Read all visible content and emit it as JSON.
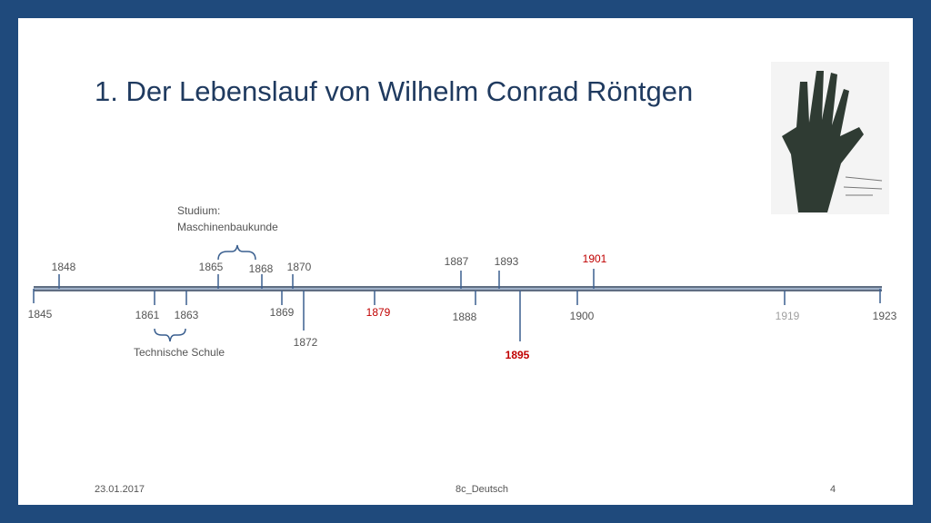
{
  "title": "1. Der Lebenslauf von Wilhelm Conrad Röntgen",
  "events": [
    "1845",
    "1848",
    "1861",
    "1863",
    "1865",
    "1868",
    "1869",
    "1870",
    "1872",
    "1879",
    "1887",
    "1888",
    "1893",
    "1895",
    "1900",
    "1901",
    "1919",
    "1923"
  ],
  "annotations": {
    "studium": [
      "Studium:",
      "Maschinenbaukunde"
    ],
    "schule": "Technische Schule"
  },
  "footer": {
    "date": "23.01.2017",
    "course": "8c_Deutsch",
    "page": "4"
  }
}
